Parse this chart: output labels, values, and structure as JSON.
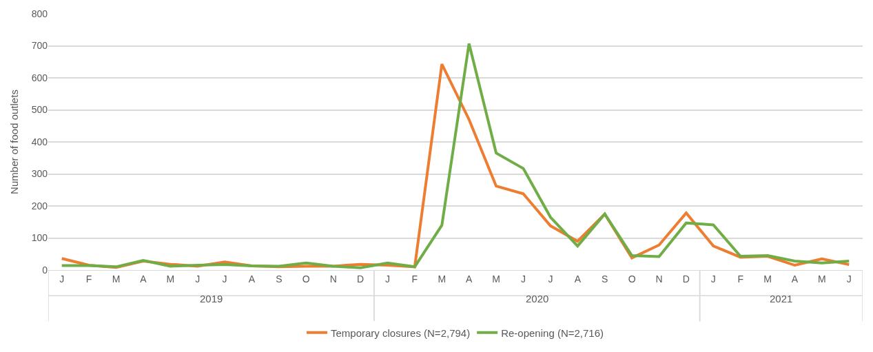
{
  "chart_data": {
    "type": "line",
    "ylabel": "Number of food outlets",
    "categories": [
      "J",
      "F",
      "M",
      "A",
      "M",
      "J",
      "J",
      "A",
      "S",
      "O",
      "N",
      "D",
      "J",
      "F",
      "M",
      "A",
      "M",
      "J",
      "J",
      "A",
      "S",
      "O",
      "N",
      "D",
      "J",
      "F",
      "M",
      "A",
      "M",
      "J"
    ],
    "series": [
      {
        "name": "Temporary closures (N=2,794)",
        "color": "#ed7d31",
        "values": [
          36,
          15,
          8,
          28,
          18,
          12,
          25,
          13,
          10,
          12,
          12,
          18,
          15,
          10,
          643,
          470,
          262,
          238,
          138,
          90,
          175,
          38,
          78,
          178,
          75,
          40,
          43,
          15,
          35,
          17
        ]
      },
      {
        "name": "Re-opening (N=2,716)",
        "color": "#70ad47",
        "values": [
          14,
          14,
          10,
          30,
          12,
          15,
          17,
          13,
          12,
          22,
          12,
          7,
          22,
          10,
          140,
          707,
          365,
          317,
          165,
          75,
          175,
          45,
          42,
          147,
          141,
          43,
          45,
          28,
          22,
          28
        ]
      }
    ],
    "ylim": [
      0,
      800
    ],
    "yticks": [
      0,
      100,
      200,
      300,
      400,
      500,
      600,
      700,
      800
    ],
    "grid": "y",
    "legend": "bottom",
    "marker": "none",
    "line_style": "solid",
    "annotations": [
      "2019",
      "2020",
      "2021"
    ]
  }
}
